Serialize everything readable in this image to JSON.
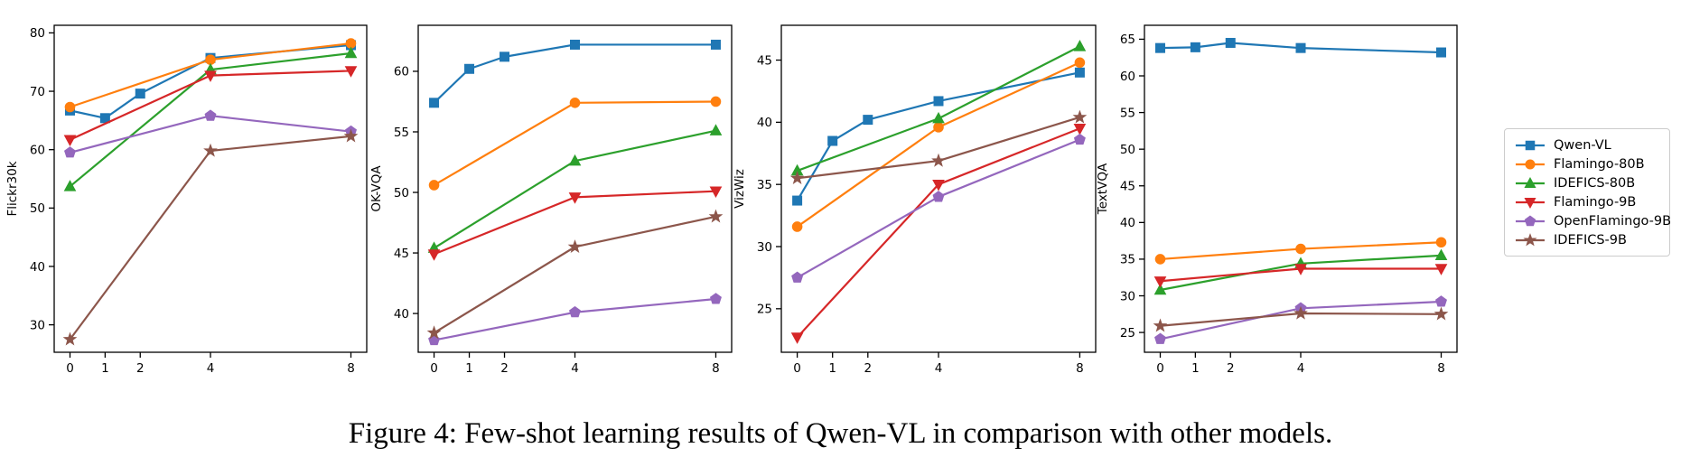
{
  "figure": {
    "caption": "Figure 4: Few-shot learning results of Qwen-VL in comparison with other models."
  },
  "colors": {
    "qwen_blue": "#1f77b4",
    "flamingo80b_orange": "#ff7f0e",
    "idefics80b_green": "#2ca02c",
    "flamingo9b_red": "#d62728",
    "openflamingo9b_purple": "#9467bd",
    "idefics9b_brown": "#8c564b",
    "axis": "#000000",
    "legend_border": "#cccccc"
  },
  "legend": {
    "position": "right of charts",
    "items": [
      {
        "label": "Qwen-VL",
        "color": "#1f77b4",
        "marker": "square"
      },
      {
        "label": "Flamingo-80B",
        "color": "#ff7f0e",
        "marker": "circle"
      },
      {
        "label": "IDEFICS-80B",
        "color": "#2ca02c",
        "marker": "triangle-up"
      },
      {
        "label": "Flamingo-9B",
        "color": "#d62728",
        "marker": "triangle-down"
      },
      {
        "label": "OpenFlamingo-9B",
        "color": "#9467bd",
        "marker": "pentagon"
      },
      {
        "label": "IDEFICS-9B",
        "color": "#8c564b",
        "marker": "star"
      }
    ]
  },
  "chart_data": [
    {
      "type": "line",
      "ylabel": "Flickr30k",
      "xticks": [
        0,
        1,
        2,
        4,
        8
      ],
      "yticks": [
        30,
        40,
        50,
        60,
        70,
        80
      ],
      "xlim": [
        -0.45,
        8.45
      ],
      "ylim": [
        25.3,
        81.3
      ],
      "grid": false,
      "series": [
        {
          "name": "Qwen-VL",
          "color": "#1f77b4",
          "marker": "square",
          "x": [
            0,
            1,
            2,
            4,
            8
          ],
          "y": [
            66.7,
            65.4,
            69.6,
            75.7,
            77.9
          ]
        },
        {
          "name": "Flamingo-80B",
          "color": "#ff7f0e",
          "marker": "circle",
          "x": [
            0,
            4,
            8
          ],
          "y": [
            67.3,
            75.4,
            78.2
          ]
        },
        {
          "name": "IDEFICS-80B",
          "color": "#2ca02c",
          "marker": "triangle-up",
          "x": [
            0,
            4,
            8
          ],
          "y": [
            53.7,
            73.7,
            76.5
          ]
        },
        {
          "name": "Flamingo-9B",
          "color": "#d62728",
          "marker": "triangle-down",
          "x": [
            0,
            4,
            8
          ],
          "y": [
            61.7,
            72.7,
            73.5
          ]
        },
        {
          "name": "OpenFlamingo-9B",
          "color": "#9467bd",
          "marker": "pentagon",
          "x": [
            0,
            4,
            8
          ],
          "y": [
            59.5,
            65.8,
            63.1
          ]
        },
        {
          "name": "IDEFICS-9B",
          "color": "#8c564b",
          "marker": "star",
          "x": [
            0,
            4,
            8
          ],
          "y": [
            27.5,
            59.8,
            62.3
          ]
        }
      ]
    },
    {
      "type": "line",
      "ylabel": "OK-VQA",
      "xticks": [
        0,
        1,
        2,
        4,
        8
      ],
      "yticks": [
        40,
        45,
        50,
        55,
        60
      ],
      "xlim": [
        -0.45,
        8.45
      ],
      "ylim": [
        36.8,
        63.8
      ],
      "grid": false,
      "series": [
        {
          "name": "Qwen-VL",
          "color": "#1f77b4",
          "marker": "square",
          "x": [
            0,
            1,
            2,
            4,
            8
          ],
          "y": [
            57.4,
            60.2,
            61.2,
            62.2,
            62.2
          ]
        },
        {
          "name": "Flamingo-80B",
          "color": "#ff7f0e",
          "marker": "circle",
          "x": [
            0,
            4,
            8
          ],
          "y": [
            50.6,
            57.4,
            57.5
          ]
        },
        {
          "name": "IDEFICS-80B",
          "color": "#2ca02c",
          "marker": "triangle-up",
          "x": [
            0,
            4,
            8
          ],
          "y": [
            45.4,
            52.6,
            55.1
          ]
        },
        {
          "name": "Flamingo-9B",
          "color": "#d62728",
          "marker": "triangle-down",
          "x": [
            0,
            4,
            8
          ],
          "y": [
            44.9,
            49.6,
            50.1
          ]
        },
        {
          "name": "OpenFlamingo-9B",
          "color": "#9467bd",
          "marker": "pentagon",
          "x": [
            0,
            4,
            8
          ],
          "y": [
            37.8,
            40.1,
            41.2
          ]
        },
        {
          "name": "IDEFICS-9B",
          "color": "#8c564b",
          "marker": "star",
          "x": [
            0,
            4,
            8
          ],
          "y": [
            38.4,
            45.5,
            48.0
          ]
        }
      ]
    },
    {
      "type": "line",
      "ylabel": "VizWiz",
      "xticks": [
        0,
        1,
        2,
        4,
        8
      ],
      "yticks": [
        25,
        30,
        35,
        40,
        45
      ],
      "xlim": [
        -0.45,
        8.45
      ],
      "ylim": [
        21.5,
        47.8
      ],
      "grid": false,
      "series": [
        {
          "name": "Qwen-VL",
          "color": "#1f77b4",
          "marker": "square",
          "x": [
            0,
            1,
            2,
            4,
            8
          ],
          "y": [
            33.7,
            38.5,
            40.2,
            41.7,
            44.0
          ]
        },
        {
          "name": "Flamingo-80B",
          "color": "#ff7f0e",
          "marker": "circle",
          "x": [
            0,
            4,
            8
          ],
          "y": [
            31.6,
            39.6,
            44.8
          ]
        },
        {
          "name": "IDEFICS-80B",
          "color": "#2ca02c",
          "marker": "triangle-up",
          "x": [
            0,
            4,
            8
          ],
          "y": [
            36.1,
            40.3,
            46.1
          ]
        },
        {
          "name": "Flamingo-9B",
          "color": "#d62728",
          "marker": "triangle-down",
          "x": [
            0,
            4,
            8
          ],
          "y": [
            22.7,
            35.0,
            39.5
          ]
        },
        {
          "name": "OpenFlamingo-9B",
          "color": "#9467bd",
          "marker": "pentagon",
          "x": [
            0,
            4,
            8
          ],
          "y": [
            27.5,
            34.0,
            38.6
          ]
        },
        {
          "name": "IDEFICS-9B",
          "color": "#8c564b",
          "marker": "star",
          "x": [
            0,
            4,
            8
          ],
          "y": [
            35.5,
            36.9,
            40.4
          ]
        }
      ]
    },
    {
      "type": "line",
      "ylabel": "TextVQA",
      "xticks": [
        0,
        1,
        2,
        4,
        8
      ],
      "yticks": [
        25,
        30,
        35,
        40,
        45,
        50,
        55,
        60,
        65
      ],
      "xlim": [
        -0.45,
        8.45
      ],
      "ylim": [
        22.3,
        66.9
      ],
      "grid": false,
      "series": [
        {
          "name": "Qwen-VL",
          "color": "#1f77b4",
          "marker": "square",
          "x": [
            0,
            1,
            2,
            4,
            8
          ],
          "y": [
            63.8,
            63.9,
            64.5,
            63.8,
            63.2
          ]
        },
        {
          "name": "Flamingo-80B",
          "color": "#ff7f0e",
          "marker": "circle",
          "x": [
            0,
            4,
            8
          ],
          "y": [
            35.0,
            36.4,
            37.3
          ]
        },
        {
          "name": "IDEFICS-80B",
          "color": "#2ca02c",
          "marker": "triangle-up",
          "x": [
            0,
            4,
            8
          ],
          "y": [
            30.8,
            34.4,
            35.5
          ]
        },
        {
          "name": "Flamingo-9B",
          "color": "#d62728",
          "marker": "triangle-down",
          "x": [
            0,
            4,
            8
          ],
          "y": [
            32.0,
            33.7,
            33.7
          ]
        },
        {
          "name": "OpenFlamingo-9B",
          "color": "#9467bd",
          "marker": "pentagon",
          "x": [
            0,
            4,
            8
          ],
          "y": [
            24.1,
            28.3,
            29.2
          ]
        },
        {
          "name": "IDEFICS-9B",
          "color": "#8c564b",
          "marker": "star",
          "x": [
            0,
            4,
            8
          ],
          "y": [
            25.9,
            27.6,
            27.5
          ]
        }
      ]
    }
  ]
}
